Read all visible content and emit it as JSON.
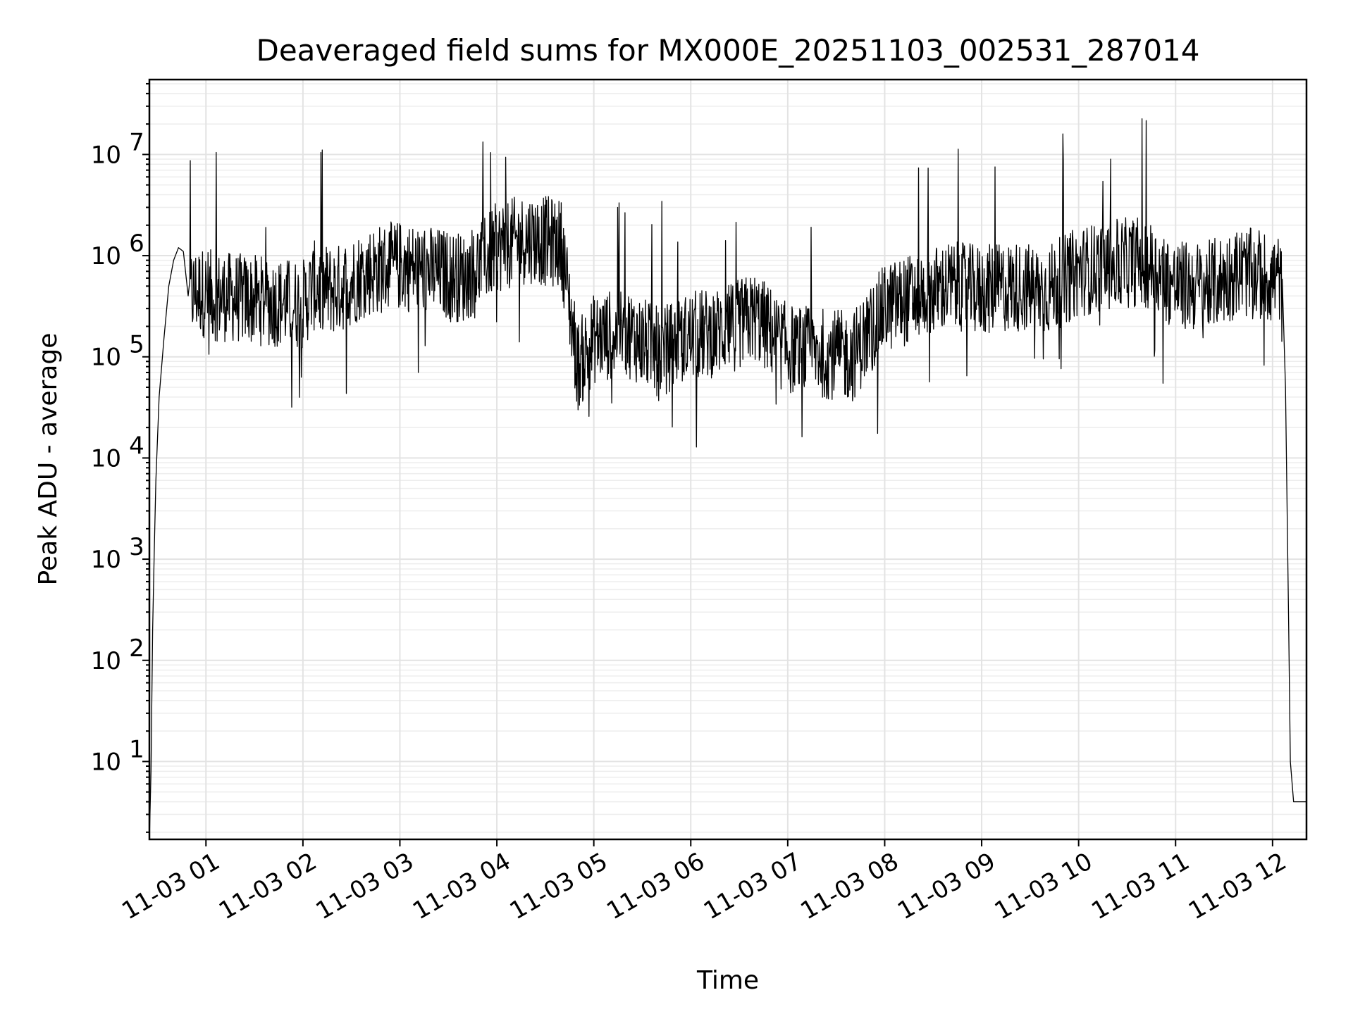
{
  "chart_data": {
    "type": "line",
    "title": "Deaveraged field sums for MX000E_20251103_002531_287014",
    "xlabel": "Time",
    "ylabel": "Peak ADU - average",
    "yscale": "log",
    "ylim": [
      1.7,
      55000000
    ],
    "xlim": [
      "2025-11-03 00:25",
      "2025-11-03 12:21"
    ],
    "grid": true,
    "x_ticks": [
      "2025-11-03 01:00",
      "2025-11-03 02:00",
      "2025-11-03 03:00",
      "2025-11-03 04:00",
      "2025-11-03 05:00",
      "2025-11-03 06:00",
      "2025-11-03 07:00",
      "2025-11-03 08:00",
      "2025-11-03 09:00",
      "2025-11-03 10:00",
      "2025-11-03 11:00",
      "2025-11-03 12:00"
    ],
    "x_tick_labels": [
      "11-03 01",
      "11-03 02",
      "11-03 03",
      "11-03 04",
      "11-03 05",
      "11-03 06",
      "11-03 07",
      "11-03 08",
      "11-03 09",
      "11-03 10",
      "11-03 11",
      "11-03 12"
    ],
    "y_ticks": [
      10,
      100,
      1000,
      10000,
      100000,
      1000000,
      10000000
    ],
    "y_tick_labels": [
      {
        "base": "10",
        "exp": "1"
      },
      {
        "base": "10",
        "exp": "2"
      },
      {
        "base": "10",
        "exp": "3"
      },
      {
        "base": "10",
        "exp": "4"
      },
      {
        "base": "10",
        "exp": "5"
      },
      {
        "base": "10",
        "exp": "6"
      },
      {
        "base": "10",
        "exp": "7"
      }
    ],
    "series": [
      {
        "color": "#000000",
        "x": [
          "2025-11-03 00:25",
          "2025-11-03 00:26",
          "2025-11-03 00:27",
          "2025-11-03 00:28",
          "2025-11-03 00:29",
          "2025-11-03 00:31",
          "2025-11-03 00:34",
          "2025-11-03 00:37",
          "2025-11-03 00:40",
          "2025-11-03 00:43",
          "2025-11-03 00:46",
          "2025-11-03 00:49",
          "2025-11-03 00:55",
          "2025-11-03 01:05",
          "2025-11-03 01:20",
          "2025-11-03 01:40",
          "2025-11-03 02:00",
          "2025-11-03 02:07",
          "2025-11-03 02:20",
          "2025-11-03 02:40",
          "2025-11-03 03:00",
          "2025-11-03 03:20",
          "2025-11-03 03:40",
          "2025-11-03 04:00",
          "2025-11-03 04:20",
          "2025-11-03 04:40",
          "2025-11-03 04:50",
          "2025-11-03 05:00",
          "2025-11-03 05:20",
          "2025-11-03 05:40",
          "2025-11-03 06:00",
          "2025-11-03 06:20",
          "2025-11-03 06:40",
          "2025-11-03 07:00",
          "2025-11-03 07:20",
          "2025-11-03 07:40",
          "2025-11-03 08:00",
          "2025-11-03 08:20",
          "2025-11-03 08:40",
          "2025-11-03 09:00",
          "2025-11-03 09:20",
          "2025-11-03 09:40",
          "2025-11-03 10:00",
          "2025-11-03 10:20",
          "2025-11-03 10:40",
          "2025-11-03 11:00",
          "2025-11-03 11:20",
          "2025-11-03 11:40",
          "2025-11-03 12:00",
          "2025-11-03 12:05",
          "2025-11-03 12:08",
          "2025-11-03 12:10",
          "2025-11-03 12:11",
          "2025-11-03 12:13",
          "2025-11-03 12:21"
        ],
        "y": [
          1.7,
          8,
          200,
          1200,
          6000,
          40000,
          150000,
          500000,
          900000,
          1200000,
          1100000,
          400000,
          450000,
          400000,
          380000,
          350000,
          330000,
          500000,
          450000,
          700000,
          800000,
          700000,
          600000,
          1200000,
          1500000,
          1300000,
          80000,
          150000,
          180000,
          110000,
          160000,
          180000,
          250000,
          120000,
          110000,
          100000,
          300000,
          400000,
          500000,
          450000,
          500000,
          450000,
          700000,
          800000,
          900000,
          500000,
          500000,
          700000,
          600000,
          600000,
          50000,
          200,
          10,
          4,
          4
        ]
      }
    ]
  }
}
